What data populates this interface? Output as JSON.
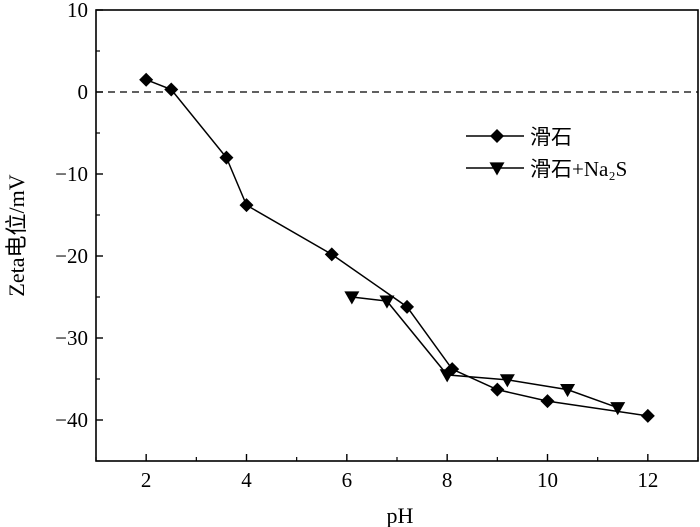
{
  "chart_data": {
    "type": "line",
    "title": "",
    "xlabel": "pH",
    "ylabel": "Zeta电位/mV",
    "xlim": [
      1,
      13
    ],
    "ylim": [
      -45,
      10
    ],
    "xticks": [
      2,
      4,
      6,
      8,
      10,
      12
    ],
    "yticks": [
      10,
      0,
      -10,
      -20,
      -30,
      -40
    ],
    "xtick_labels": [
      "2",
      "4",
      "6",
      "8",
      "10",
      "12"
    ],
    "ytick_labels": [
      "10",
      "0",
      "−10",
      "−20",
      "−30",
      "−40"
    ],
    "reference_line": {
      "y": 0,
      "style": "dashed"
    },
    "legend_placement": "right",
    "grid": false,
    "series": [
      {
        "name": "滑石",
        "marker": "diamond",
        "x": [
          2.0,
          2.5,
          3.6,
          4.0,
          5.7,
          7.2,
          8.1,
          9.0,
          10.0,
          12.0
        ],
        "y": [
          1.5,
          0.3,
          -8.0,
          -13.8,
          -19.8,
          -26.2,
          -33.8,
          -36.3,
          -37.7,
          -39.5
        ]
      },
      {
        "name": "滑石+Na₂S",
        "marker": "triangle-down",
        "x": [
          6.1,
          6.8,
          8.0,
          9.2,
          10.4,
          11.4
        ],
        "y": [
          -25.0,
          -25.5,
          -34.5,
          -35.1,
          -36.3,
          -38.5
        ]
      }
    ]
  }
}
